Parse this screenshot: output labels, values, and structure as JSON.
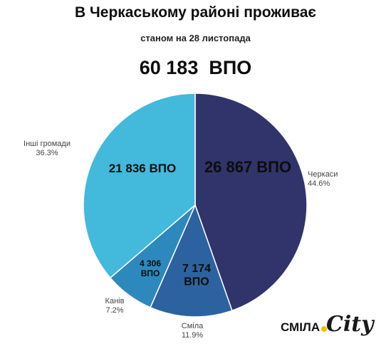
{
  "title": "В Черкаському районі проживає",
  "subtitle": "станом на 28 листопада",
  "total": "60 183  ВПО",
  "logo": {
    "part1": "СМІЛА",
    "part2": "City"
  },
  "colors": {
    "Черкаси": "#31346a",
    "Сміла": "#2c62a0",
    "Канів": "#2d89bd",
    "Інші громади": "#43b9dc"
  },
  "chart_data": {
    "type": "pie",
    "title": "В Черкаському районі проживає",
    "start": "12 o'clock",
    "direction": "clockwise",
    "slices": [
      {
        "name": "Черкаси",
        "value": 26867,
        "percent": "44.6%",
        "inner_label": "26 867  ВПО"
      },
      {
        "name": "Сміла",
        "value": 7174,
        "percent": "11.9%",
        "inner_label": "7 174\nВПО"
      },
      {
        "name": "Канів",
        "value": 4306,
        "percent": "7.2%",
        "inner_label": "4 306\nВПО"
      },
      {
        "name": "Інші громади",
        "value": 21836,
        "percent": "36.3%",
        "inner_label": "21 836 ВПО"
      }
    ]
  }
}
